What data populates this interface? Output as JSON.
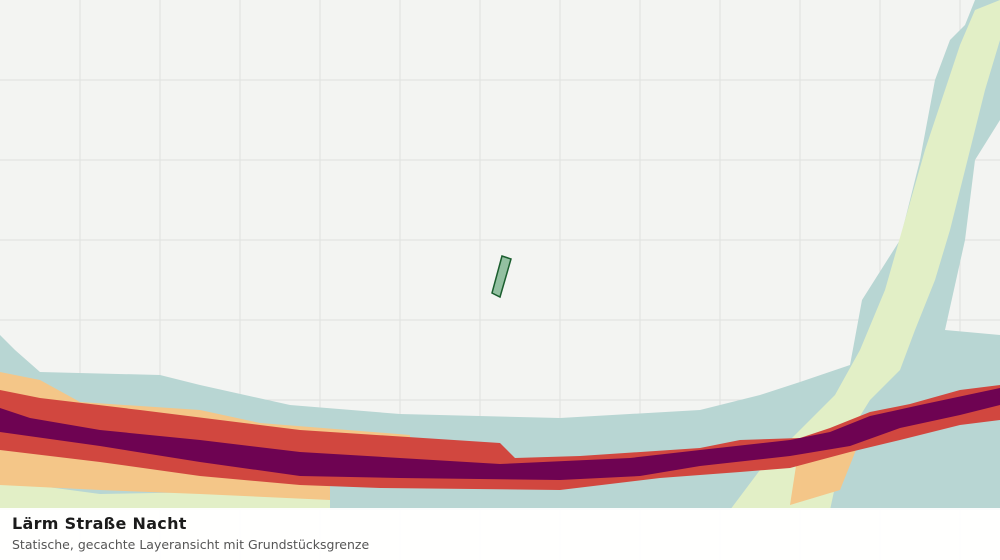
{
  "footer": {
    "title": "Lärm Straße Nacht",
    "subtitle": "Statische, gecachte Layeransicht mit Grundstücksgrenze"
  }
}
